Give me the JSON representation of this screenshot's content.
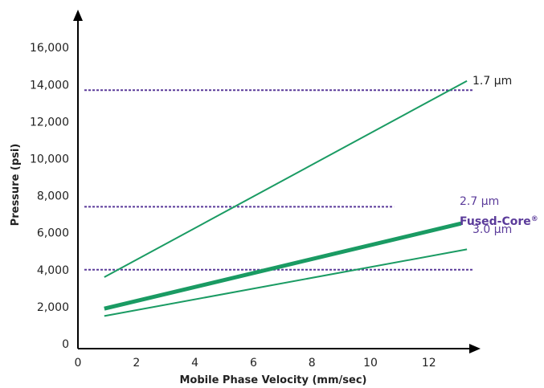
{
  "chart_data": {
    "type": "line",
    "xlabel": "Mobile Phase Velocity (mm/sec)",
    "ylabel": "Pressure (psi)",
    "xlim": [
      0,
      14
    ],
    "ylim": [
      0,
      18000
    ],
    "x_ticks": [
      "0",
      "2",
      "4",
      "6",
      "8",
      "10",
      "12"
    ],
    "y_ticks": [
      "0",
      "2,000",
      "4,000",
      "6,000",
      "8,000",
      "10,000",
      "12,000",
      "14,000",
      "16,000"
    ],
    "series": [
      {
        "name": "1.7 µm",
        "x": [
          0.9,
          13.3
        ],
        "y": [
          3600,
          14200
        ],
        "color": "#1a9b63",
        "emphasis": false
      },
      {
        "name": "2.7 µm Fused-Core®",
        "x": [
          0.9,
          13.1
        ],
        "y": [
          1900,
          6500
        ],
        "color": "#1a9b63",
        "emphasis": true
      },
      {
        "name": "3.0 µm",
        "x": [
          0.9,
          13.3
        ],
        "y": [
          1500,
          5100
        ],
        "color": "#1a9b63",
        "emphasis": false
      }
    ],
    "reference_lines": [
      {
        "y": 13700,
        "x_end": 13.5
      },
      {
        "y": 7400,
        "x_end": 10.8
      },
      {
        "y": 4000,
        "x_end": 13.5
      }
    ],
    "reference_color": "#5b3b9a",
    "labels": {
      "s1": "1.7 µm",
      "s2_line1": "2.7 µm",
      "s2_line2": "Fused-Core",
      "s2_mark": "®",
      "s3": "3.0 µm"
    },
    "label_colors": {
      "s1": "#222222",
      "s2": "#5b3b9a",
      "s3": "#5b3b9a"
    }
  }
}
